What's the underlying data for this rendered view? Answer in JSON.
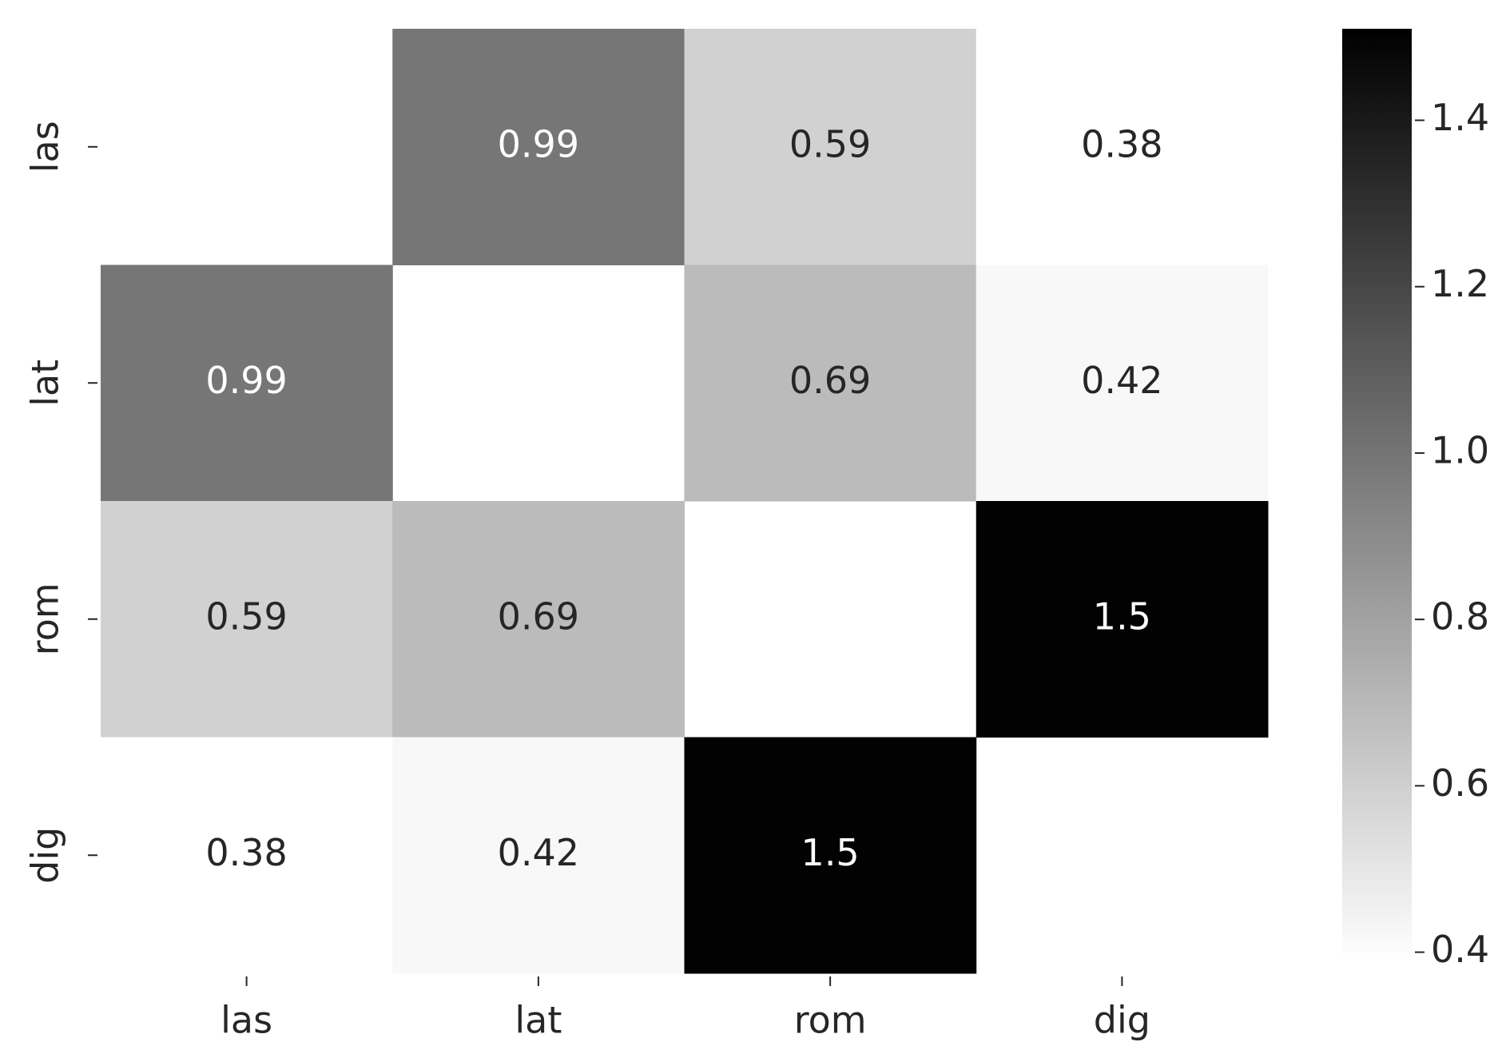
{
  "chart_data": {
    "type": "heatmap",
    "x_categories": [
      "las",
      "lat",
      "rom",
      "dig"
    ],
    "y_categories": [
      "las",
      "lat",
      "rom",
      "dig"
    ],
    "z": [
      [
        null,
        0.99,
        0.59,
        0.38
      ],
      [
        0.99,
        null,
        0.69,
        0.42
      ],
      [
        0.59,
        0.69,
        null,
        1.5
      ],
      [
        0.38,
        0.42,
        1.5,
        null
      ]
    ],
    "colors": [
      "#ffffff",
      "#000000"
    ],
    "clim": [
      0.39,
      1.51
    ],
    "cticks": [
      0.4,
      0.6,
      0.8,
      {
        "value": 1,
        "label": "1.0"
      },
      1.2,
      1.4
    ]
  }
}
